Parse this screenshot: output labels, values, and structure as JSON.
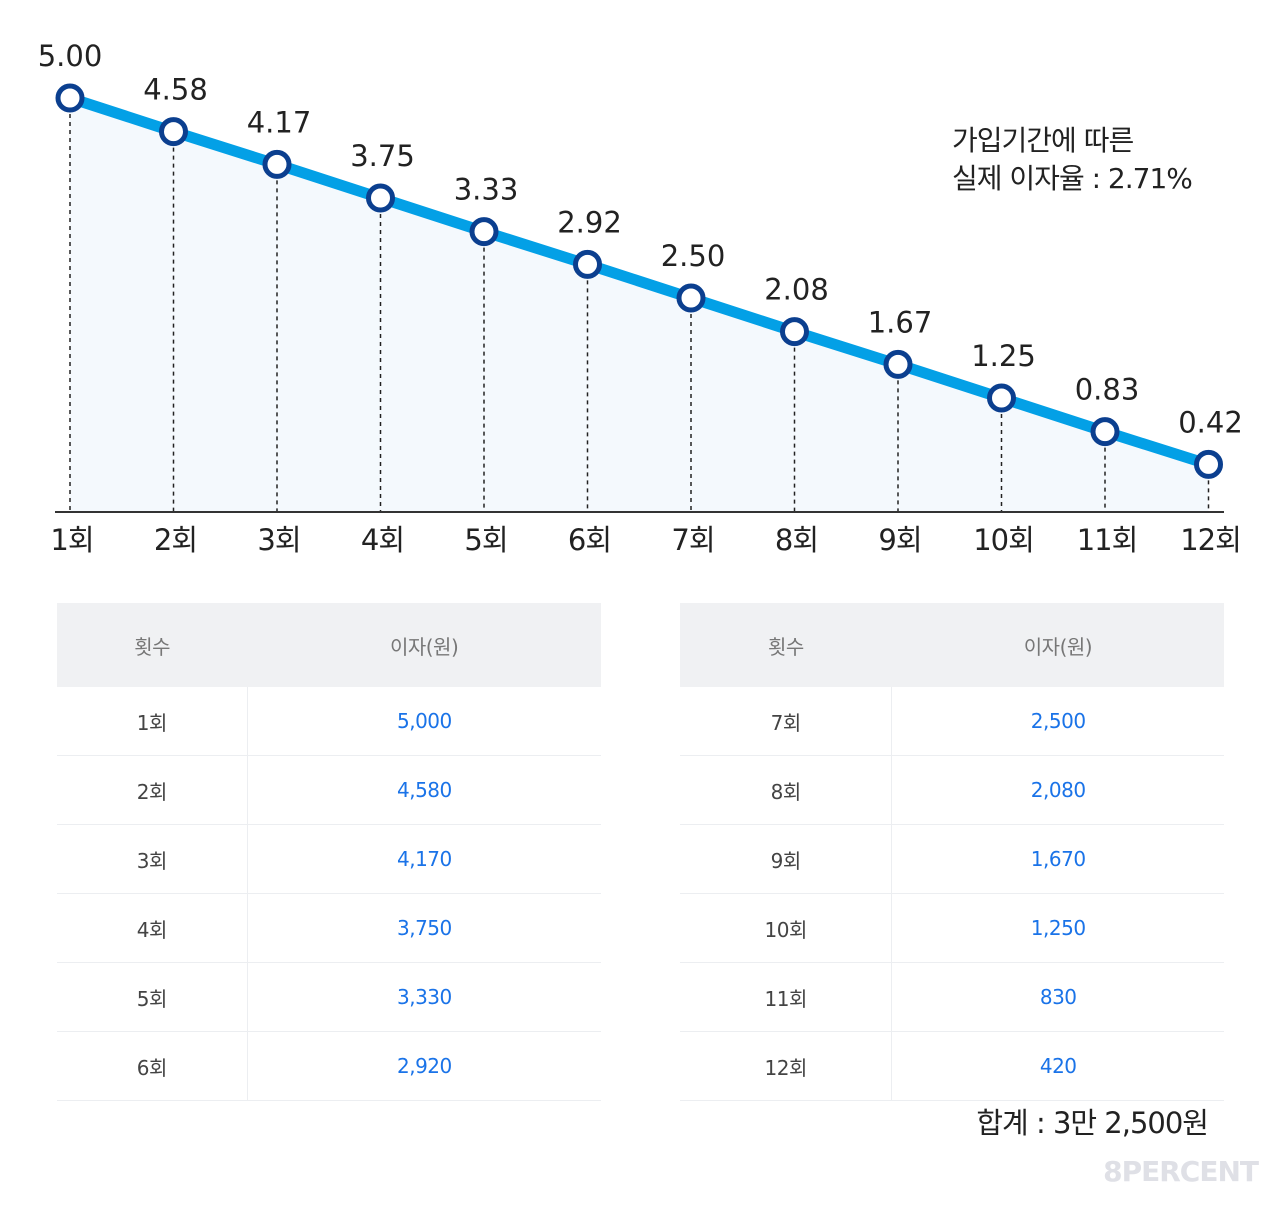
{
  "chart_data": {
    "type": "line",
    "categories": [
      "1회",
      "2회",
      "3회",
      "4회",
      "5회",
      "6회",
      "7회",
      "8회",
      "9회",
      "10회",
      "11회",
      "12회"
    ],
    "values": [
      5.0,
      4.58,
      4.17,
      3.75,
      3.33,
      2.92,
      2.5,
      2.08,
      1.67,
      1.25,
      0.83,
      0.42
    ],
    "data_labels": [
      "5.00",
      "4.58",
      "4.17",
      "3.75",
      "3.33",
      "2.92",
      "2.50",
      "2.08",
      "1.67",
      "1.25",
      "0.83",
      "0.42"
    ],
    "ylim": [
      0,
      5.2
    ],
    "grid": false,
    "colors": {
      "line": "#03a0e6",
      "marker_stroke": "#0b3f8f",
      "fill": "#f4f9fd"
    }
  },
  "note": {
    "line1": "가입기간에 따른",
    "line2": "실제 이자율 : 2.71%"
  },
  "tables": [
    {
      "headers": [
        "횟수",
        "이자(원)"
      ],
      "rows": [
        [
          "1회",
          "5,000"
        ],
        [
          "2회",
          "4,580"
        ],
        [
          "3회",
          "4,170"
        ],
        [
          "4회",
          "3,750"
        ],
        [
          "5회",
          "3,330"
        ],
        [
          "6회",
          "2,920"
        ]
      ]
    },
    {
      "headers": [
        "횟수",
        "이자(원)"
      ],
      "rows": [
        [
          "7회",
          "2,500"
        ],
        [
          "8회",
          "2,080"
        ],
        [
          "9회",
          "1,670"
        ],
        [
          "10회",
          "1,250"
        ],
        [
          "11회",
          "830"
        ],
        [
          "12회",
          "420"
        ]
      ]
    }
  ],
  "total": "합계 : 3만 2,500원",
  "logo": "8PERCENT"
}
